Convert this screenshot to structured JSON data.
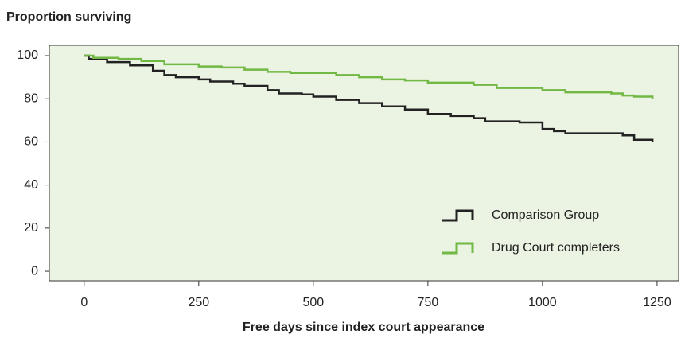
{
  "chart_data": {
    "type": "step",
    "ylabel": "Proportion surviving",
    "xlabel": "Free days since index court appearance",
    "xlim": [
      -76,
      1297
    ],
    "xticks": [
      0,
      250,
      500,
      750,
      1000,
      1250
    ],
    "ylim": [
      -4.4,
      104.8
    ],
    "yticks": [
      0,
      20,
      40,
      60,
      80,
      100
    ],
    "legend": "lower right",
    "series": [
      {
        "name": "Comparison Group",
        "color": "#222222",
        "x": [
          0,
          10,
          50,
          100,
          150,
          175,
          200,
          250,
          275,
          325,
          350,
          400,
          425,
          475,
          500,
          550,
          600,
          650,
          700,
          750,
          800,
          850,
          875,
          950,
          1000,
          1025,
          1050,
          1150,
          1175,
          1200,
          1240
        ],
        "values": [
          100,
          98.5,
          97,
          95.5,
          93,
          91,
          90,
          89,
          88,
          87,
          86,
          84,
          82.5,
          82,
          81,
          79.5,
          78,
          76.5,
          75,
          73,
          72,
          71,
          69.5,
          69,
          66,
          65,
          64,
          64,
          63,
          61,
          60
        ]
      },
      {
        "name": "Drug Court completers",
        "color": "#72b844",
        "x": [
          0,
          20,
          75,
          125,
          175,
          250,
          300,
          350,
          400,
          450,
          550,
          600,
          650,
          700,
          750,
          850,
          900,
          1000,
          1050,
          1150,
          1175,
          1200,
          1240
        ],
        "values": [
          100,
          99,
          98.5,
          97.5,
          96,
          95,
          94.5,
          93.5,
          92.5,
          92,
          91,
          90,
          89,
          88.5,
          87.5,
          86.5,
          85,
          84,
          83,
          82.5,
          81.5,
          81,
          80
        ]
      }
    ]
  }
}
